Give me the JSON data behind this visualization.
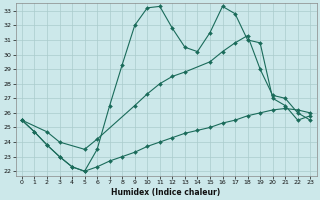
{
  "xlabel": "Humidex (Indice chaleur)",
  "background_color": "#cce8ea",
  "grid_color": "#aacccc",
  "line_color": "#1a6b5a",
  "xlim": [
    -0.5,
    23.5
  ],
  "ylim": [
    21.7,
    33.5
  ],
  "xticks": [
    0,
    1,
    2,
    3,
    4,
    5,
    6,
    7,
    8,
    9,
    10,
    11,
    12,
    13,
    14,
    15,
    16,
    17,
    18,
    19,
    20,
    21,
    22,
    23
  ],
  "yticks": [
    22,
    23,
    24,
    25,
    26,
    27,
    28,
    29,
    30,
    31,
    32,
    33
  ],
  "line1_x": [
    0,
    1,
    2,
    3,
    4,
    5,
    6,
    7,
    8,
    9,
    10,
    11,
    12,
    13,
    14,
    15,
    16,
    17,
    18,
    19,
    20,
    21,
    22,
    23
  ],
  "line1_y": [
    25.5,
    24.7,
    23.8,
    23.0,
    22.3,
    22.0,
    23.5,
    26.5,
    29.3,
    32.0,
    33.2,
    33.3,
    31.8,
    30.5,
    30.2,
    31.5,
    33.3,
    32.8,
    31.0,
    30.8,
    27.0,
    26.5,
    25.5,
    25.8
  ],
  "line2_x": [
    0,
    2,
    3,
    5,
    6,
    9,
    10,
    11,
    12,
    13,
    15,
    16,
    17,
    18,
    19,
    20,
    21,
    22,
    23
  ],
  "line2_y": [
    25.5,
    24.7,
    24.0,
    23.5,
    24.2,
    26.5,
    27.3,
    28.0,
    28.5,
    28.8,
    29.5,
    30.2,
    30.8,
    31.3,
    29.0,
    27.2,
    27.0,
    26.0,
    25.5
  ],
  "line3_x": [
    0,
    1,
    2,
    3,
    4,
    5,
    6,
    7,
    8,
    9,
    10,
    11,
    12,
    13,
    14,
    15,
    16,
    17,
    18,
    19,
    20,
    21,
    22,
    23
  ],
  "line3_y": [
    25.5,
    24.7,
    23.8,
    23.0,
    22.3,
    22.0,
    22.3,
    22.7,
    23.0,
    23.3,
    23.7,
    24.0,
    24.3,
    24.6,
    24.8,
    25.0,
    25.3,
    25.5,
    25.8,
    26.0,
    26.2,
    26.3,
    26.2,
    26.0
  ]
}
